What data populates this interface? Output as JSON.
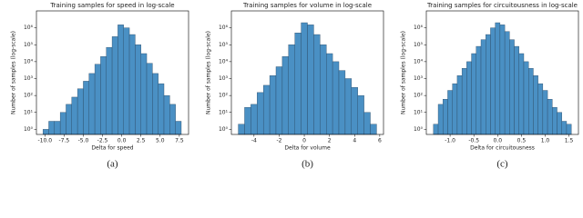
{
  "chart_data": [
    {
      "type": "histogram",
      "title": "Training samples for speed in log-scale",
      "xlabel": "Delta for speed",
      "ylabel": "Number of samples (log-scale)",
      "caption": "(a)",
      "bins": [
        -10.25,
        -9.5,
        -8.75,
        -8,
        -7.25,
        -6.5,
        -5.75,
        -5,
        -4.25,
        -3.5,
        -2.75,
        -2,
        -1.25,
        -0.5,
        0.25,
        1,
        1.75,
        2.5,
        3.25,
        4,
        4.75,
        5.5,
        6.25,
        7,
        7.75
      ],
      "values": [
        1,
        3,
        3,
        10,
        30,
        80,
        250,
        700,
        2000,
        7000,
        20000,
        70000,
        300000,
        1500000,
        1000000,
        400000,
        100000,
        30000,
        8000,
        2000,
        500,
        100,
        30,
        3
      ],
      "color": "#4a90c4",
      "log_y": true,
      "xlim": [
        -11.1,
        8.7
      ],
      "ylim": [
        0.5,
        10000000
      ],
      "xticks": [
        {
          "value": -10,
          "label": "-10.0"
        },
        -7.5,
        {
          "value": -5,
          "label": "-5.0"
        },
        -2.5,
        {
          "value": 0,
          "label": "0.0"
        },
        2.5,
        {
          "value": 5,
          "label": "5.0"
        },
        7.5
      ],
      "yticks": [
        {
          "value": 1,
          "label": "10⁰"
        },
        {
          "value": 10,
          "label": "10¹"
        },
        {
          "value": 100,
          "label": "10²"
        },
        {
          "value": 1000,
          "label": "10³"
        },
        {
          "value": 10000,
          "label": "10⁴"
        },
        {
          "value": 100000,
          "label": "10⁵"
        },
        {
          "value": 1000000,
          "label": "10⁶"
        }
      ]
    },
    {
      "type": "histogram",
      "title": "Training samples for volume in log-scale",
      "xlabel": "Delta for volume",
      "ylabel": "Number of samples (log-scale)",
      "caption": "(b)",
      "bins": [
        -5.25,
        -4.75,
        -4.25,
        -3.75,
        -3.25,
        -2.75,
        -2.25,
        -1.75,
        -1.25,
        -0.75,
        -0.25,
        0.25,
        0.75,
        1.25,
        1.75,
        2.25,
        2.75,
        3.25,
        3.75,
        4.25,
        4.75,
        5.25,
        5.75
      ],
      "values": [
        2,
        20,
        30,
        150,
        400,
        1500,
        5000,
        20000,
        100000,
        500000,
        2000000,
        1500000,
        400000,
        100000,
        30000,
        10000,
        3000,
        1000,
        300,
        100,
        10,
        2
      ],
      "color": "#4a90c4",
      "log_y": true,
      "xlim": [
        -5.8,
        6.3
      ],
      "ylim": [
        0.5,
        10000000
      ],
      "xticks": [
        -4,
        -2,
        0,
        2,
        4,
        6
      ],
      "yticks": [
        {
          "value": 1,
          "label": "10⁰"
        },
        {
          "value": 10,
          "label": "10¹"
        },
        {
          "value": 100,
          "label": "10²"
        },
        {
          "value": 1000,
          "label": "10³"
        },
        {
          "value": 10000,
          "label": "10⁴"
        },
        {
          "value": 100000,
          "label": "10⁵"
        },
        {
          "value": 1000000,
          "label": "10⁶"
        }
      ]
    },
    {
      "type": "histogram",
      "title": "Training samples for circuitousness in log-scale",
      "xlabel": "Delta for circuitousness",
      "ylabel": "Number of samples (log-scale)",
      "caption": "(c)",
      "bins": [
        -1.35,
        -1.25,
        -1.15,
        -1.05,
        -0.95,
        -0.85,
        -0.75,
        -0.65,
        -0.55,
        -0.45,
        -0.35,
        -0.25,
        -0.15,
        -0.05,
        0.05,
        0.15,
        0.25,
        0.35,
        0.45,
        0.55,
        0.65,
        0.75,
        0.85,
        0.95,
        1.05,
        1.15,
        1.25,
        1.35,
        1.45,
        1.55
      ],
      "values": [
        2,
        30,
        60,
        200,
        500,
        1500,
        4000,
        10000,
        30000,
        80000,
        200000,
        400000,
        1000000,
        2000000,
        1500000,
        600000,
        200000,
        80000,
        30000,
        10000,
        4000,
        1500,
        500,
        200,
        60,
        20,
        10,
        3,
        2
      ],
      "color": "#4a90c4",
      "log_y": true,
      "xlim": [
        -1.5,
        1.7
      ],
      "ylim": [
        0.5,
        10000000
      ],
      "xticks": [
        {
          "value": -1,
          "label": "-1.0"
        },
        -0.5,
        {
          "value": 0,
          "label": "0.0"
        },
        0.5,
        {
          "value": 1,
          "label": "1.0"
        },
        1.5
      ],
      "yticks": [
        {
          "value": 1,
          "label": "10⁰"
        },
        {
          "value": 10,
          "label": "10¹"
        },
        {
          "value": 100,
          "label": "10²"
        },
        {
          "value": 1000,
          "label": "10³"
        },
        {
          "value": 10000,
          "label": "10⁴"
        },
        {
          "value": 100000,
          "label": "10⁵"
        },
        {
          "value": 1000000,
          "label": "10⁶"
        }
      ]
    }
  ]
}
